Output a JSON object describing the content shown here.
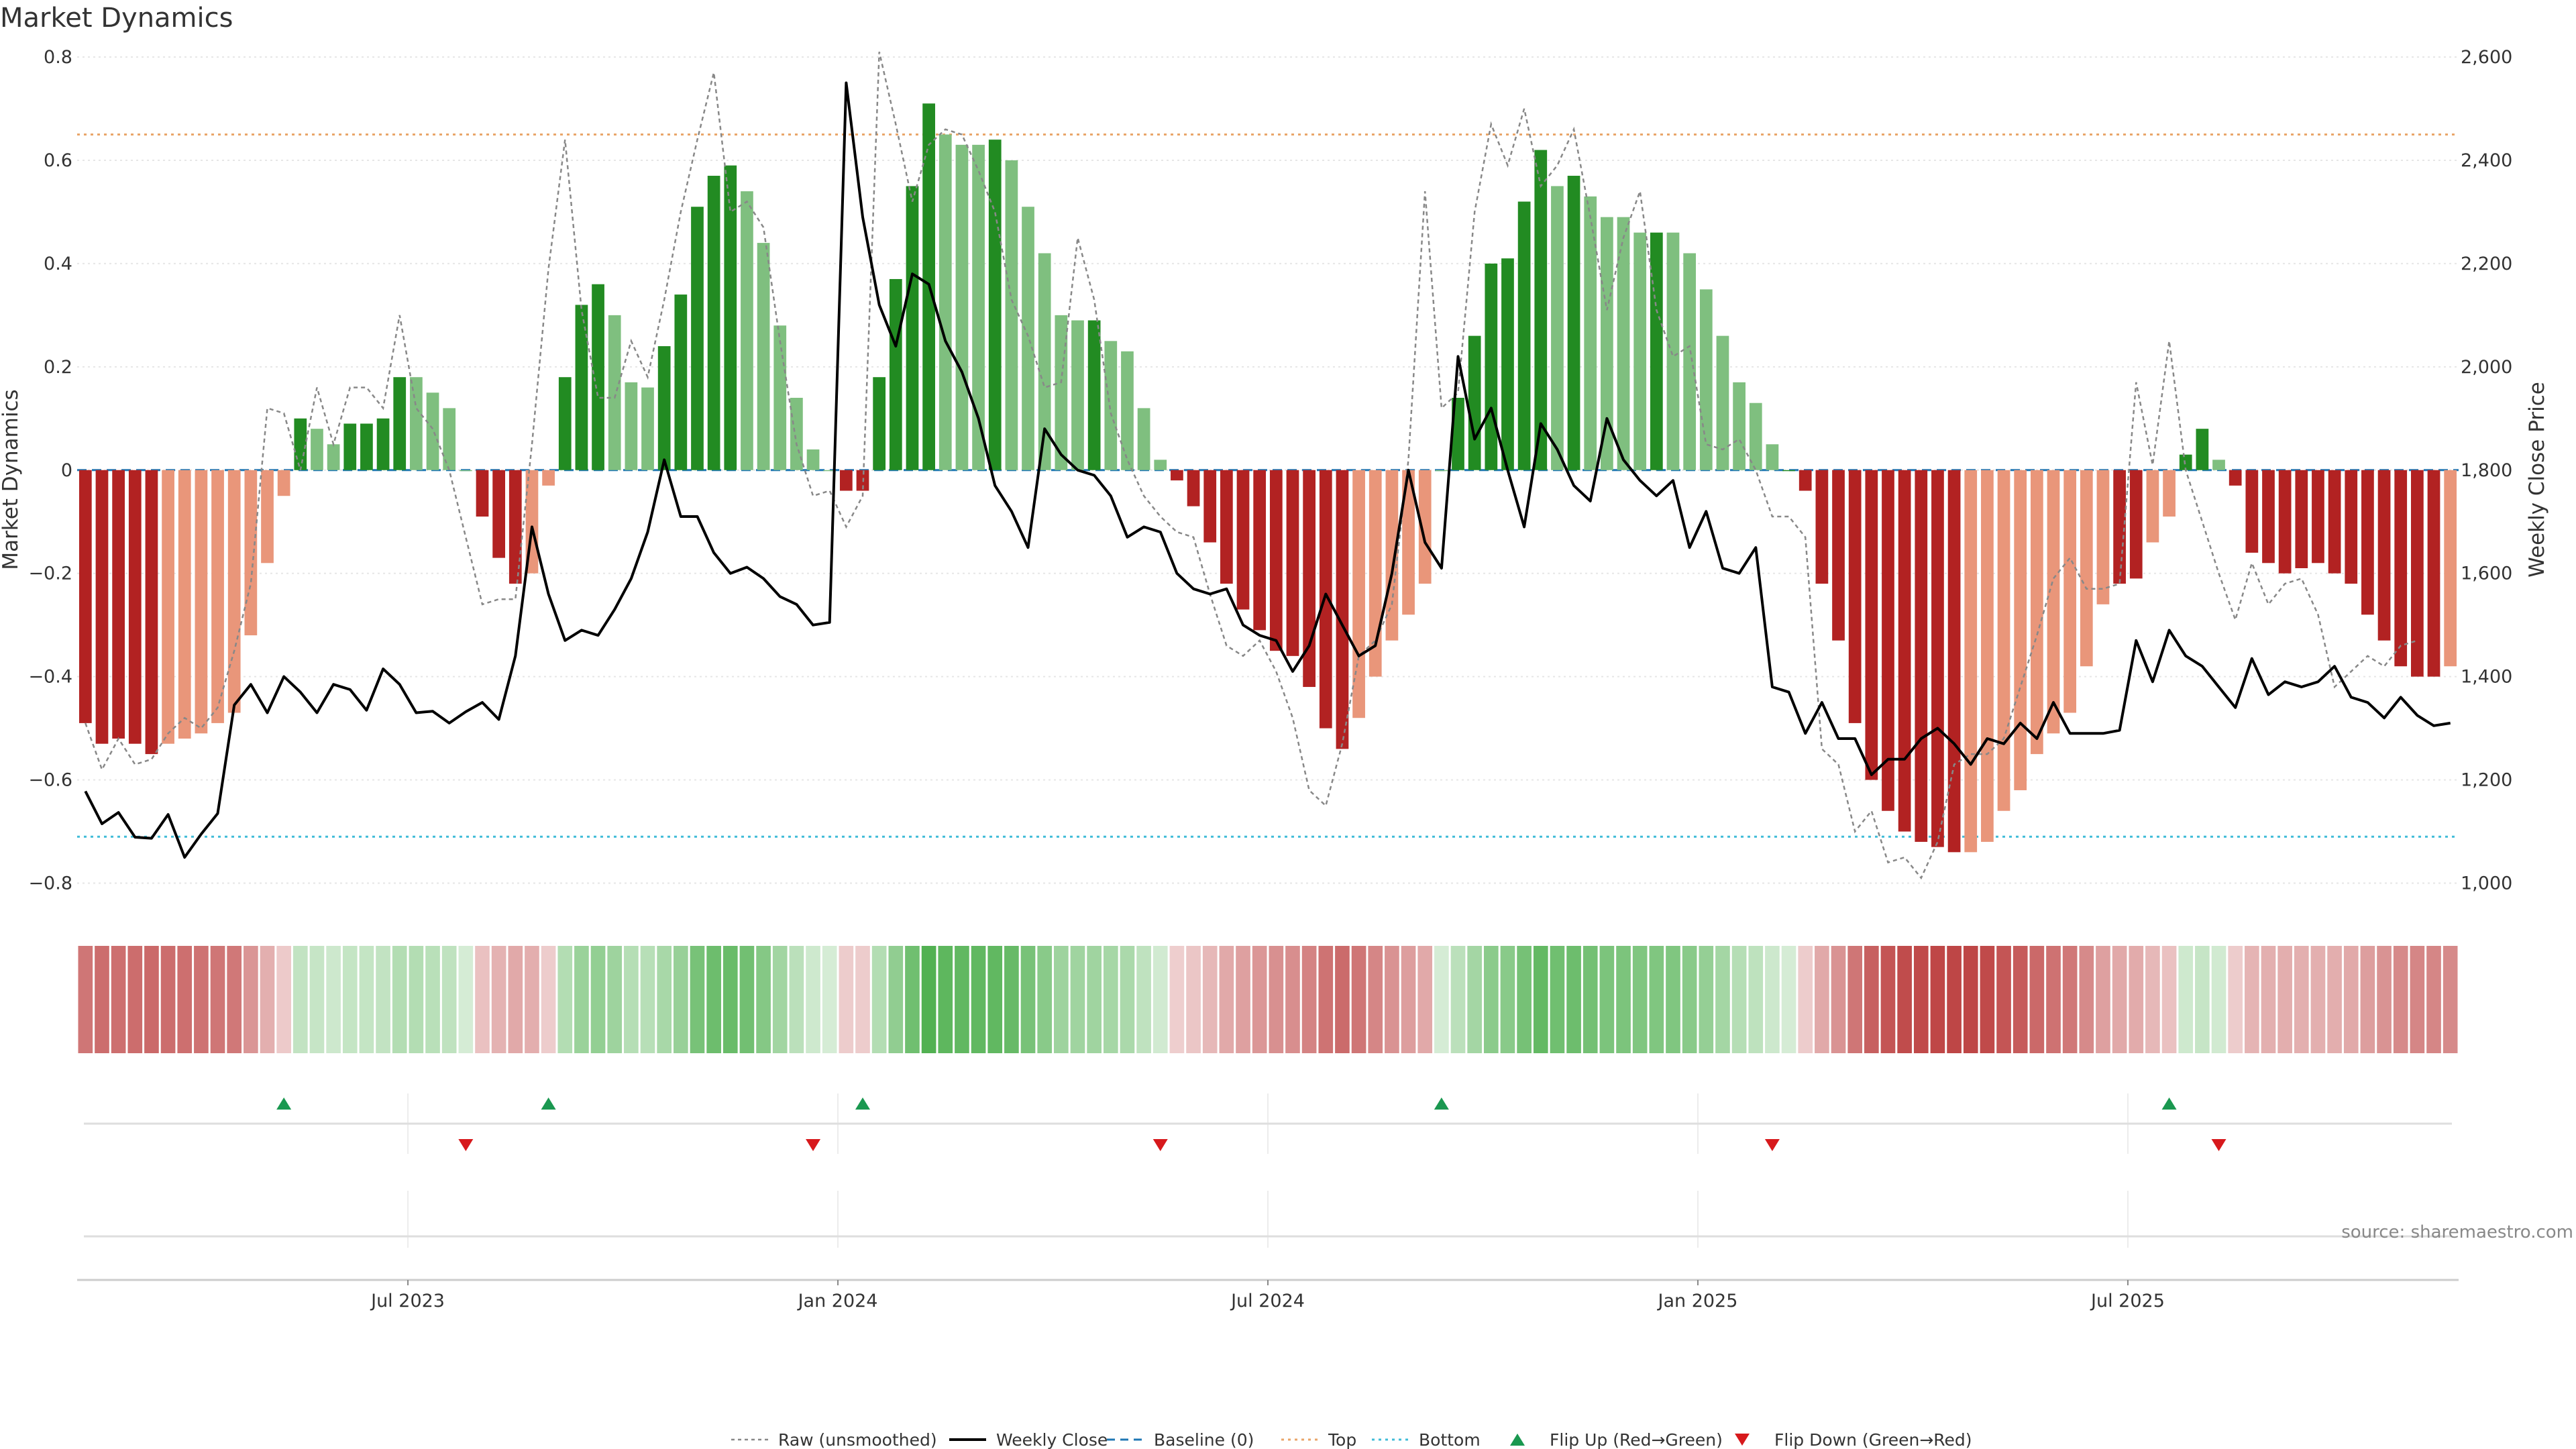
{
  "chart_data": {
    "type": "bar",
    "title": "Market Dynamics",
    "ylabel_left": "Market Dynamics",
    "ylabel_right": "Weekly Close Price",
    "ylim_left": [
      -0.85,
      0.8
    ],
    "ylim_right": [
      950,
      2600
    ],
    "yticks_left": [
      "0.8",
      "0.6",
      "0.4",
      "0.2",
      "0",
      "−0.2",
      "−0.4",
      "−0.6",
      "−0.8"
    ],
    "yticks_left_values": [
      0.8,
      0.6,
      0.4,
      0.2,
      0,
      -0.2,
      -0.4,
      -0.6,
      -0.8
    ],
    "yticks_right": [
      "2,600",
      "2,400",
      "2,200",
      "2,000",
      "1,800",
      "1,600",
      "1,400",
      "1,200",
      "1,000"
    ],
    "yticks_right_values": [
      2600,
      2400,
      2200,
      2000,
      1800,
      1600,
      1400,
      1200,
      1000
    ],
    "xtick_labels": [
      "Jul 2023",
      "Jan 2024",
      "Jul 2024",
      "Jan 2025",
      "Jul 2025"
    ],
    "xtick_week_index": [
      20,
      46,
      72,
      98,
      124
    ],
    "top_level": 0.65,
    "bottom_level": -0.71,
    "colors": {
      "strong_green": "#228b22",
      "light_green": "#7fbf7f",
      "strong_red": "#b22222",
      "light_red": "#e9967a",
      "top_line": "#e9a66a",
      "bottom_line": "#40bcd8",
      "baseline": "#1f77b4",
      "close_line": "#000000",
      "raw_line": "#888888",
      "flip_up": "#1a9850",
      "flip_down": "#d7191c"
    },
    "series": [
      {
        "name": "Market Dynamics",
        "values": [
          -0.49,
          -0.53,
          -0.52,
          -0.53,
          -0.55,
          -0.53,
          -0.52,
          -0.51,
          -0.49,
          -0.47,
          -0.32,
          -0.18,
          -0.05,
          0.1,
          0.08,
          0.05,
          0.09,
          0.09,
          0.1,
          0.18,
          0.18,
          0.15,
          0.12,
          0.0,
          -0.09,
          -0.17,
          -0.22,
          -0.2,
          -0.03,
          0.18,
          0.32,
          0.36,
          0.3,
          0.17,
          0.16,
          0.24,
          0.34,
          0.51,
          0.57,
          0.59,
          0.54,
          0.44,
          0.28,
          0.14,
          0.04,
          0.0,
          -0.04,
          -0.04,
          0.18,
          0.37,
          0.55,
          0.71,
          0.65,
          0.63,
          0.63,
          0.64,
          0.6,
          0.51,
          0.42,
          0.3,
          0.29,
          0.29,
          0.25,
          0.23,
          0.12,
          0.02,
          -0.02,
          -0.07,
          -0.14,
          -0.22,
          -0.27,
          -0.31,
          -0.35,
          -0.36,
          -0.42,
          -0.5,
          -0.54,
          -0.48,
          -0.4,
          -0.33,
          -0.28,
          -0.22,
          0.0,
          0.14,
          0.26,
          0.4,
          0.41,
          0.52,
          0.62,
          0.55,
          0.57,
          0.53,
          0.49,
          0.49,
          0.46,
          0.46,
          0.46,
          0.42,
          0.35,
          0.26,
          0.17,
          0.13,
          0.05,
          0.0,
          -0.04,
          -0.22,
          -0.33,
          -0.49,
          -0.6,
          -0.66,
          -0.7,
          -0.72,
          -0.73,
          -0.74,
          -0.74,
          -0.72,
          -0.66,
          -0.62,
          -0.55,
          -0.51,
          -0.47,
          -0.38,
          -0.26,
          -0.22,
          -0.21,
          -0.14,
          -0.09,
          0.03,
          0.08,
          0.02,
          -0.03,
          -0.16,
          -0.18,
          -0.2,
          -0.19,
          -0.18,
          -0.2,
          -0.22,
          -0.28,
          -0.33,
          -0.38,
          -0.4,
          -0.4,
          -0.38
        ],
        "strong": [
          1,
          1,
          1,
          1,
          1,
          0,
          0,
          0,
          0,
          0,
          0,
          0,
          0,
          1,
          0,
          0,
          1,
          1,
          1,
          1,
          0,
          0,
          0,
          0,
          1,
          1,
          1,
          0,
          0,
          1,
          1,
          1,
          0,
          0,
          0,
          1,
          1,
          1,
          1,
          1,
          0,
          0,
          0,
          0,
          0,
          0,
          1,
          1,
          1,
          1,
          1,
          1,
          0,
          0,
          0,
          1,
          0,
          0,
          0,
          0,
          0,
          1,
          0,
          0,
          0,
          0,
          1,
          1,
          1,
          1,
          1,
          1,
          1,
          1,
          1,
          1,
          1,
          0,
          0,
          0,
          0,
          0,
          0,
          1,
          1,
          1,
          1,
          1,
          1,
          0,
          1,
          0,
          0,
          0,
          0,
          1,
          0,
          0,
          0,
          0,
          0,
          0,
          0,
          1,
          1,
          1,
          1,
          1,
          1,
          1,
          1,
          1,
          1,
          1,
          0,
          0,
          0,
          0,
          0,
          0,
          0,
          0,
          0,
          1,
          1,
          0,
          0,
          1,
          1,
          0,
          1,
          1,
          1,
          1,
          1,
          1,
          1,
          1,
          1,
          1,
          1,
          1,
          1,
          0
        ]
      },
      {
        "name": "Raw (unsmoothed)",
        "values": [
          -0.49,
          -0.58,
          -0.52,
          -0.57,
          -0.56,
          -0.51,
          -0.48,
          -0.5,
          -0.46,
          -0.35,
          -0.22,
          0.12,
          0.11,
          0.0,
          0.16,
          0.05,
          0.16,
          0.16,
          0.12,
          0.3,
          0.12,
          0.08,
          0.0,
          -0.13,
          -0.26,
          -0.25,
          -0.25,
          0.05,
          0.39,
          0.64,
          0.31,
          0.14,
          0.14,
          0.25,
          0.18,
          0.33,
          0.5,
          0.64,
          0.77,
          0.5,
          0.52,
          0.47,
          0.25,
          0.05,
          -0.05,
          -0.04,
          -0.11,
          -0.05,
          0.81,
          0.67,
          0.52,
          0.63,
          0.66,
          0.65,
          0.58,
          0.5,
          0.33,
          0.26,
          0.16,
          0.17,
          0.45,
          0.33,
          0.11,
          0.02,
          -0.05,
          -0.09,
          -0.12,
          -0.13,
          -0.24,
          -0.34,
          -0.36,
          -0.33,
          -0.39,
          -0.48,
          -0.62,
          -0.65,
          -0.53,
          -0.36,
          -0.33,
          -0.26,
          0.02,
          0.54,
          0.12,
          0.15,
          0.5,
          0.67,
          0.59,
          0.7,
          0.55,
          0.59,
          0.66,
          0.49,
          0.31,
          0.45,
          0.54,
          0.31,
          0.22,
          0.24,
          0.05,
          0.04,
          0.06,
          0.0,
          -0.09,
          -0.09,
          -0.13,
          -0.54,
          -0.57,
          -0.7,
          -0.66,
          -0.76,
          -0.75,
          -0.79,
          -0.72,
          -0.57,
          -0.55,
          -0.55,
          -0.52,
          -0.42,
          -0.32,
          -0.21,
          -0.17,
          -0.23,
          -0.23,
          -0.22,
          0.17,
          0.01,
          0.25,
          0.0,
          -0.1,
          -0.2,
          -0.29,
          -0.18,
          -0.26,
          -0.22,
          -0.21,
          -0.28,
          -0.42,
          -0.39,
          -0.36,
          -0.38,
          -0.34,
          -0.33
        ]
      },
      {
        "name": "Weekly Close",
        "values": [
          1178,
          1115,
          1137,
          1089,
          1087,
          1133,
          1050,
          1095,
          1135,
          1345,
          1385,
          1330,
          1400,
          1370,
          1330,
          1385,
          1375,
          1335,
          1415,
          1385,
          1330,
          1333,
          1310,
          1332,
          1350,
          1317,
          1440,
          1690,
          1560,
          1470,
          1490,
          1480,
          1530,
          1590,
          1680,
          1820,
          1710,
          1710,
          1640,
          1600,
          1612,
          1590,
          1555,
          1540,
          1500,
          1505,
          2550,
          2290,
          2120,
          2040,
          2180,
          2160,
          2050,
          1990,
          1900,
          1770,
          1720,
          1650,
          1880,
          1830,
          1800,
          1790,
          1750,
          1670,
          1690,
          1680,
          1600,
          1570,
          1560,
          1570,
          1500,
          1480,
          1470,
          1410,
          1460,
          1560,
          1500,
          1440,
          1460,
          1600,
          1800,
          1660,
          1610,
          2020,
          1860,
          1920,
          1800,
          1690,
          1890,
          1840,
          1770,
          1740,
          1900,
          1820,
          1780,
          1750,
          1780,
          1650,
          1720,
          1610,
          1600,
          1650,
          1380,
          1370,
          1290,
          1350,
          1280,
          1280,
          1210,
          1240,
          1240,
          1280,
          1300,
          1270,
          1230,
          1280,
          1270,
          1310,
          1280,
          1350,
          1290,
          1290,
          1290,
          1296,
          1470,
          1390,
          1490,
          1440,
          1420,
          1380,
          1340,
          1435,
          1365,
          1390,
          1380,
          1390,
          1420,
          1360,
          1350,
          1320,
          1360,
          1325,
          1305,
          1310
        ]
      }
    ],
    "flip_up_weeks": [
      12,
      28,
      47,
      82,
      126
    ],
    "flip_down_weeks": [
      23,
      44,
      65,
      102,
      129
    ],
    "legend": [
      {
        "label": "Raw (unsmoothed)",
        "style": "dotted-gray"
      },
      {
        "label": "Weekly Close",
        "style": "solid-black"
      },
      {
        "label": "Baseline (0)",
        "style": "dashed-blue"
      },
      {
        "label": "Top",
        "style": "dotted-orange"
      },
      {
        "label": "Bottom",
        "style": "dotted-cyan"
      },
      {
        "label": "Flip Up (Red→Green)",
        "style": "triangle-up"
      },
      {
        "label": "Flip Down (Green→Red)",
        "style": "triangle-down"
      }
    ],
    "legend_position": "bottom-center",
    "grid": true,
    "source": "source: sharemaestro.com"
  }
}
